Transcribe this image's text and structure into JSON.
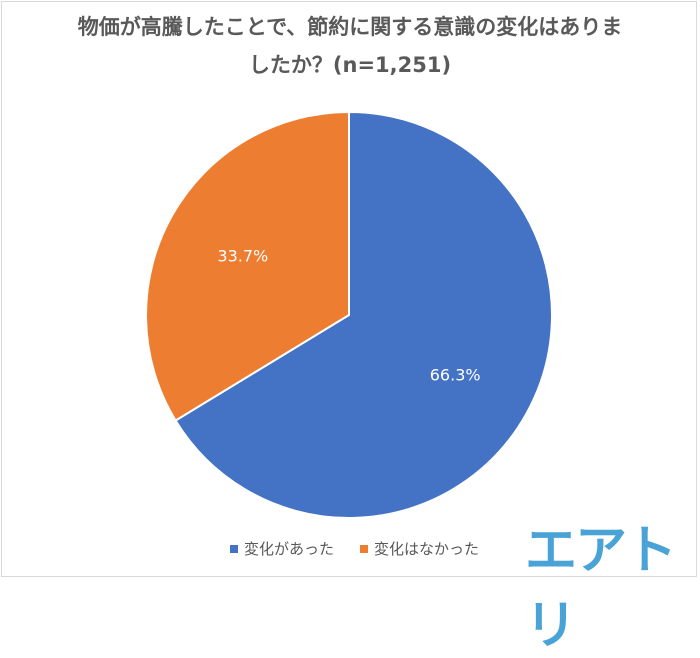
{
  "chart_data": {
    "type": "pie",
    "title_line1": "物価が高騰したことで、節約に関する意識の変化はありま",
    "title_line2": "したか？(n=1,251)",
    "slices": [
      {
        "label": "変化があった",
        "value": 66.3,
        "display": "66.3%",
        "color": "#4472c4"
      },
      {
        "label": "変化はなかった",
        "value": 33.7,
        "display": "33.7%",
        "color": "#ed7d31"
      }
    ],
    "start_angle": "top",
    "direction": "clockwise",
    "legend_position": "bottom"
  },
  "logo": "エアトリ"
}
